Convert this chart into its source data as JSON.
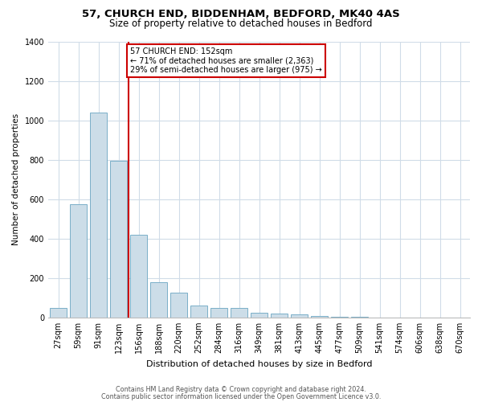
{
  "title": "57, CHURCH END, BIDDENHAM, BEDFORD, MK40 4AS",
  "subtitle": "Size of property relative to detached houses in Bedford",
  "xlabel": "Distribution of detached houses by size in Bedford",
  "ylabel": "Number of detached properties",
  "bar_labels": [
    "27sqm",
    "59sqm",
    "91sqm",
    "123sqm",
    "156sqm",
    "188sqm",
    "220sqm",
    "252sqm",
    "284sqm",
    "316sqm",
    "349sqm",
    "381sqm",
    "413sqm",
    "445sqm",
    "477sqm",
    "509sqm",
    "541sqm",
    "574sqm",
    "606sqm",
    "638sqm",
    "670sqm"
  ],
  "bar_values": [
    50,
    575,
    1040,
    795,
    420,
    180,
    125,
    62,
    50,
    50,
    25,
    20,
    15,
    8,
    3,
    2,
    1,
    0,
    0,
    0,
    0
  ],
  "bar_color": "#ccdde8",
  "bar_edge_color": "#7aafc8",
  "vline_index": 4,
  "property_label": "57 CHURCH END: 152sqm",
  "annotation_line1": "← 71% of detached houses are smaller (2,363)",
  "annotation_line2": "29% of semi-detached houses are larger (975) →",
  "vline_color": "#cc0000",
  "annotation_box_edge": "#cc0000",
  "ylim": [
    0,
    1400
  ],
  "yticks": [
    0,
    200,
    400,
    600,
    800,
    1000,
    1200,
    1400
  ],
  "footer_line1": "Contains HM Land Registry data © Crown copyright and database right 2024.",
  "footer_line2": "Contains public sector information licensed under the Open Government Licence v3.0.",
  "background_color": "#ffffff",
  "grid_color": "#d0dce8",
  "title_fontsize": 9.5,
  "subtitle_fontsize": 8.5,
  "xlabel_fontsize": 8,
  "ylabel_fontsize": 7.5,
  "tick_fontsize": 7,
  "footer_fontsize": 5.8
}
